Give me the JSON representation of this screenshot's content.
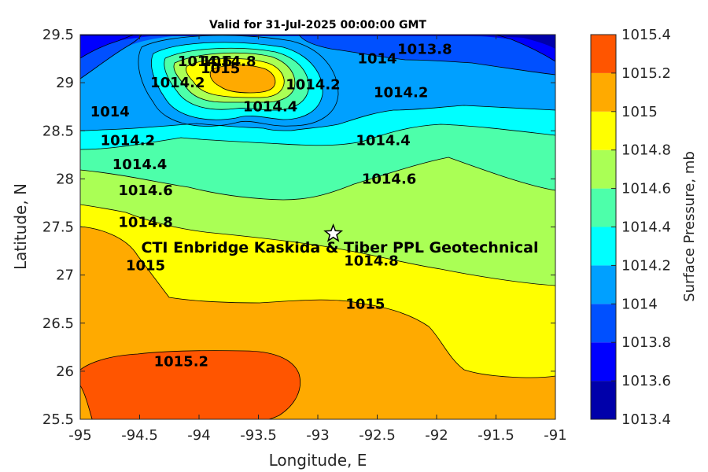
{
  "chart_data": {
    "type": "contour",
    "title": "Valid for 31-Jul-2025 00:00:00 GMT",
    "xlabel": "Longitude, E",
    "ylabel": "Latitude, N",
    "xlim": [
      -95,
      -91
    ],
    "ylim": [
      25.5,
      29.5
    ],
    "xticks": [
      -95,
      -94.5,
      -94,
      -93.5,
      -93,
      -92.5,
      -92,
      -91.5,
      -91
    ],
    "yticks": [
      25.5,
      26,
      26.5,
      27,
      27.5,
      28,
      28.5,
      29,
      29.5
    ],
    "colorbar": {
      "label": "Surface Pressure, mb",
      "levels": [
        1013.4,
        1013.6,
        1013.8,
        1014,
        1014.2,
        1014.4,
        1014.6,
        1014.8,
        1015,
        1015.2,
        1015.4
      ],
      "colors": [
        "#0000aa",
        "#0000ff",
        "#0050ff",
        "#00a0ff",
        "#00ffff",
        "#4dffaa",
        "#aaff55",
        "#ffff00",
        "#ffaa00",
        "#ff5500",
        "#ff0000"
      ]
    },
    "contour_labels": [
      {
        "text": "1015.2",
        "lon": -94.15,
        "lat": 26.1
      },
      {
        "text": "1015",
        "lon": -92.6,
        "lat": 26.7
      },
      {
        "text": "1015",
        "lon": -94.45,
        "lat": 27.1
      },
      {
        "text": "1014.8",
        "lon": -92.55,
        "lat": 27.15
      },
      {
        "text": "1014.8",
        "lon": -94.45,
        "lat": 27.55
      },
      {
        "text": "1014.6",
        "lon": -94.45,
        "lat": 27.88
      },
      {
        "text": "1014.6",
        "lon": -92.4,
        "lat": 28.0
      },
      {
        "text": "1014.4",
        "lon": -94.5,
        "lat": 28.15
      },
      {
        "text": "1014.4",
        "lon": -92.45,
        "lat": 28.4
      },
      {
        "text": "1014.2",
        "lon": -94.6,
        "lat": 28.4
      },
      {
        "text": "1014.2",
        "lon": -92.3,
        "lat": 28.9
      },
      {
        "text": "1014.2",
        "lon": -93.04,
        "lat": 28.98
      },
      {
        "text": "1014.2",
        "lon": -94.18,
        "lat": 29.0
      },
      {
        "text": "1014.4",
        "lon": -93.4,
        "lat": 28.75
      },
      {
        "text": "1014",
        "lon": -94.75,
        "lat": 28.7
      },
      {
        "text": "1014",
        "lon": -92.5,
        "lat": 29.25
      },
      {
        "text": "1013.8",
        "lon": -92.1,
        "lat": 29.35
      },
      {
        "text": "1014.6",
        "lon": -93.95,
        "lat": 29.22
      },
      {
        "text": "1014.8",
        "lon": -93.75,
        "lat": 29.22
      },
      {
        "text": "1015",
        "lon": -93.82,
        "lat": 29.15
      }
    ],
    "site": {
      "label": "CTI Enbridge  Kaskida & Tiber PPL Geotechnical",
      "lon": -92.87,
      "lat": 27.43,
      "marker": "star"
    }
  }
}
